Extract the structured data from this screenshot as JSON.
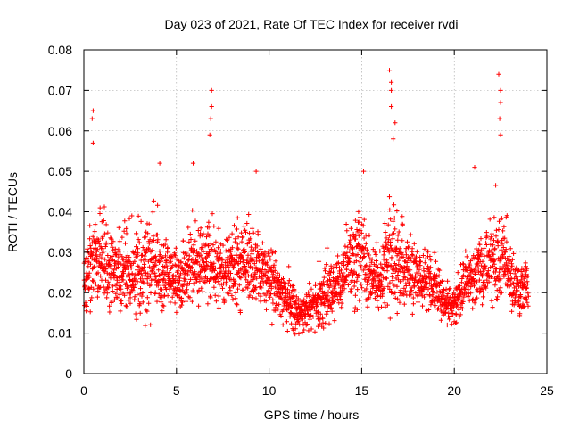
{
  "chart_data": {
    "type": "scatter",
    "title": "Day 023 of 2021, Rate Of TEC Index for receiver rvdi",
    "xlabel": "GPS time / hours",
    "ylabel": "ROTI / TECUs",
    "xlim": [
      0,
      25
    ],
    "ylim": [
      0,
      0.08
    ],
    "x_ticks": [
      "0",
      "5",
      "10",
      "15",
      "20",
      "25"
    ],
    "y_ticks": [
      "0",
      "0.01",
      "0.02",
      "0.03",
      "0.04",
      "0.05",
      "0.06",
      "0.07",
      "0.08"
    ],
    "grid": true,
    "marker": "+",
    "color": "#ff0000",
    "series": [
      {
        "name": "ROTI",
        "trend": {
          "x": [
            0.0,
            0.5,
            1.0,
            1.5,
            2.0,
            2.5,
            3.0,
            3.5,
            4.0,
            4.5,
            5.0,
            5.5,
            6.0,
            6.5,
            7.0,
            7.5,
            8.0,
            8.5,
            9.0,
            9.5,
            10.0,
            10.5,
            11.0,
            11.5,
            12.0,
            12.5,
            13.0,
            13.5,
            14.0,
            14.5,
            15.0,
            15.5,
            16.0,
            16.5,
            17.0,
            17.5,
            18.0,
            18.5,
            19.0,
            19.5,
            20.0,
            20.5,
            21.0,
            21.5,
            22.0,
            22.5,
            23.0,
            23.5,
            24.0
          ],
          "low": [
            0.013,
            0.016,
            0.014,
            0.013,
            0.013,
            0.013,
            0.01,
            0.012,
            0.012,
            0.014,
            0.015,
            0.014,
            0.015,
            0.014,
            0.015,
            0.015,
            0.016,
            0.015,
            0.016,
            0.014,
            0.012,
            0.012,
            0.01,
            0.009,
            0.009,
            0.01,
            0.011,
            0.012,
            0.013,
            0.015,
            0.015,
            0.014,
            0.013,
            0.012,
            0.011,
            0.013,
            0.014,
            0.013,
            0.012,
            0.011,
            0.011,
            0.014,
            0.014,
            0.015,
            0.015,
            0.015,
            0.013,
            0.013,
            0.013
          ],
          "high": [
            0.03,
            0.04,
            0.042,
            0.038,
            0.036,
            0.036,
            0.04,
            0.04,
            0.04,
            0.034,
            0.032,
            0.036,
            0.04,
            0.038,
            0.04,
            0.036,
            0.036,
            0.038,
            0.04,
            0.036,
            0.034,
            0.03,
            0.026,
            0.022,
            0.022,
            0.024,
            0.028,
            0.03,
            0.034,
            0.04,
            0.046,
            0.034,
            0.03,
            0.046,
            0.04,
            0.036,
            0.034,
            0.032,
            0.03,
            0.024,
            0.022,
            0.03,
            0.034,
            0.036,
            0.04,
            0.046,
            0.034,
            0.03,
            0.03
          ]
        },
        "peaks": [
          {
            "x": 0.5,
            "y": 0.065
          },
          {
            "x": 0.45,
            "y": 0.063
          },
          {
            "x": 0.5,
            "y": 0.057
          },
          {
            "x": 6.9,
            "y": 0.07
          },
          {
            "x": 6.9,
            "y": 0.066
          },
          {
            "x": 6.85,
            "y": 0.063
          },
          {
            "x": 6.8,
            "y": 0.059
          },
          {
            "x": 16.5,
            "y": 0.075
          },
          {
            "x": 16.6,
            "y": 0.072
          },
          {
            "x": 16.6,
            "y": 0.07
          },
          {
            "x": 16.6,
            "y": 0.066
          },
          {
            "x": 16.8,
            "y": 0.062
          },
          {
            "x": 16.7,
            "y": 0.058
          },
          {
            "x": 22.4,
            "y": 0.074
          },
          {
            "x": 22.5,
            "y": 0.07
          },
          {
            "x": 22.5,
            "y": 0.067
          },
          {
            "x": 22.45,
            "y": 0.063
          },
          {
            "x": 22.5,
            "y": 0.059
          },
          {
            "x": 4.1,
            "y": 0.052
          },
          {
            "x": 5.9,
            "y": 0.052
          },
          {
            "x": 9.3,
            "y": 0.05
          },
          {
            "x": 15.1,
            "y": 0.05
          },
          {
            "x": 21.1,
            "y": 0.051
          }
        ]
      }
    ]
  }
}
